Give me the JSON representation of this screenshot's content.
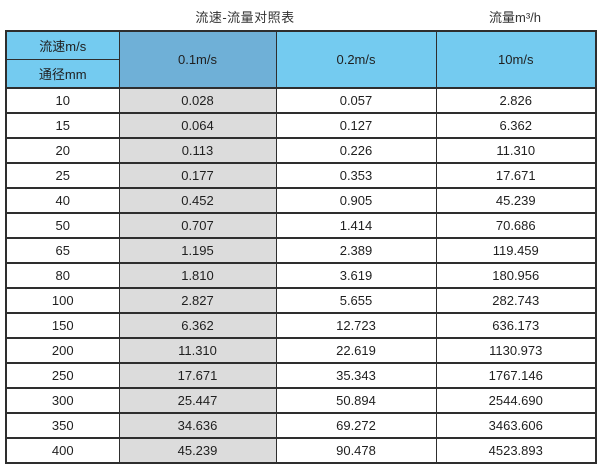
{
  "titles": {
    "left": "流速-流量对照表",
    "right": "流量m³/h"
  },
  "colors": {
    "header_light_blue": "#74cbf0",
    "header_dark_blue": "#6fb0d7",
    "gray_column": "#dcdcdc",
    "border": "#2e2e2e"
  },
  "table": {
    "corner_top": "流速m/s",
    "corner_bottom": "通径mm",
    "columns": [
      "0.1m/s",
      "0.2m/s",
      "10m/s"
    ],
    "rows": [
      {
        "dn": "10",
        "v1": "0.028",
        "v2": "0.057",
        "v3": "2.826"
      },
      {
        "dn": "15",
        "v1": "0.064",
        "v2": "0.127",
        "v3": "6.362"
      },
      {
        "dn": "20",
        "v1": "0.113",
        "v2": "0.226",
        "v3": "11.310"
      },
      {
        "dn": "25",
        "v1": "0.177",
        "v2": "0.353",
        "v3": "17.671"
      },
      {
        "dn": "40",
        "v1": "0.452",
        "v2": "0.905",
        "v3": "45.239"
      },
      {
        "dn": "50",
        "v1": "0.707",
        "v2": "1.414",
        "v3": "70.686"
      },
      {
        "dn": "65",
        "v1": "1.195",
        "v2": "2.389",
        "v3": "119.459"
      },
      {
        "dn": "80",
        "v1": "1.810",
        "v2": "3.619",
        "v3": "180.956"
      },
      {
        "dn": "100",
        "v1": "2.827",
        "v2": "5.655",
        "v3": "282.743"
      },
      {
        "dn": "150",
        "v1": "6.362",
        "v2": "12.723",
        "v3": "636.173"
      },
      {
        "dn": "200",
        "v1": "11.310",
        "v2": "22.619",
        "v3": "1130.973"
      },
      {
        "dn": "250",
        "v1": "17.671",
        "v2": "35.343",
        "v3": "1767.146"
      },
      {
        "dn": "300",
        "v1": "25.447",
        "v2": "50.894",
        "v3": "2544.690"
      },
      {
        "dn": "350",
        "v1": "34.636",
        "v2": "69.272",
        "v3": "3463.606"
      },
      {
        "dn": "400",
        "v1": "45.239",
        "v2": "90.478",
        "v3": "4523.893"
      }
    ]
  },
  "chart_data": {
    "type": "table",
    "title": "流速-流量对照表",
    "value_unit_label": "流量m³/h",
    "column_axis_label": "流速m/s",
    "row_axis_label": "通径mm",
    "columns": [
      "0.1m/s",
      "0.2m/s",
      "10m/s"
    ],
    "rows": [
      {
        "diameter_mm": 10,
        "flow_m3_per_h": [
          0.028,
          0.057,
          2.826
        ]
      },
      {
        "diameter_mm": 15,
        "flow_m3_per_h": [
          0.064,
          0.127,
          6.362
        ]
      },
      {
        "diameter_mm": 20,
        "flow_m3_per_h": [
          0.113,
          0.226,
          11.31
        ]
      },
      {
        "diameter_mm": 25,
        "flow_m3_per_h": [
          0.177,
          0.353,
          17.671
        ]
      },
      {
        "diameter_mm": 40,
        "flow_m3_per_h": [
          0.452,
          0.905,
          45.239
        ]
      },
      {
        "diameter_mm": 50,
        "flow_m3_per_h": [
          0.707,
          1.414,
          70.686
        ]
      },
      {
        "diameter_mm": 65,
        "flow_m3_per_h": [
          1.195,
          2.389,
          119.459
        ]
      },
      {
        "diameter_mm": 80,
        "flow_m3_per_h": [
          1.81,
          3.619,
          180.956
        ]
      },
      {
        "diameter_mm": 100,
        "flow_m3_per_h": [
          2.827,
          5.655,
          282.743
        ]
      },
      {
        "diameter_mm": 150,
        "flow_m3_per_h": [
          6.362,
          12.723,
          636.173
        ]
      },
      {
        "diameter_mm": 200,
        "flow_m3_per_h": [
          11.31,
          22.619,
          1130.973
        ]
      },
      {
        "diameter_mm": 250,
        "flow_m3_per_h": [
          17.671,
          35.343,
          1767.146
        ]
      },
      {
        "diameter_mm": 300,
        "flow_m3_per_h": [
          25.447,
          50.894,
          2544.69
        ]
      },
      {
        "diameter_mm": 350,
        "flow_m3_per_h": [
          34.636,
          69.272,
          3463.606
        ]
      },
      {
        "diameter_mm": 400,
        "flow_m3_per_h": [
          45.239,
          90.478,
          4523.893
        ]
      }
    ]
  }
}
